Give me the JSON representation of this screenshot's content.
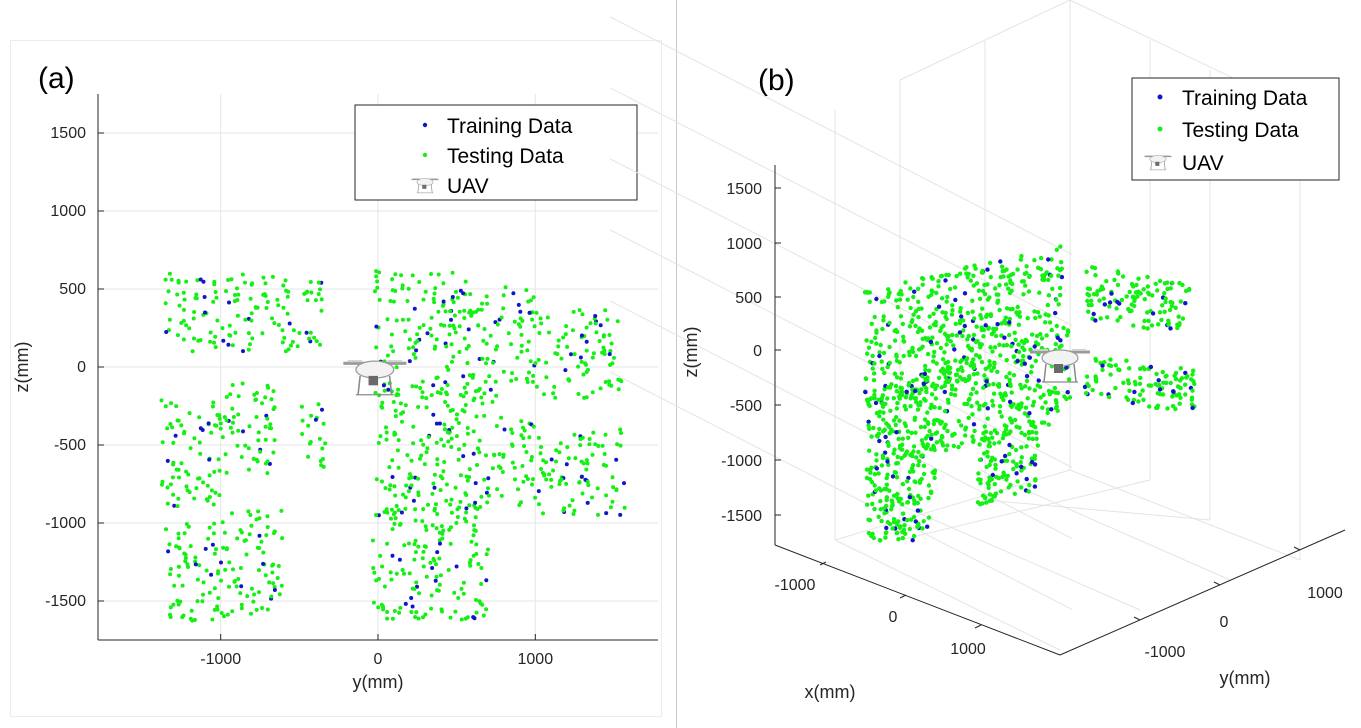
{
  "chart_data": [
    {
      "id": "a",
      "panel_label": "(a)",
      "type": "scatter",
      "xlabel": "y(mm)",
      "ylabel": "z(mm)",
      "xlim": [
        -1780,
        1780
      ],
      "ylim": [
        -1750,
        1750
      ],
      "xticks": [
        -1000,
        0,
        1000
      ],
      "yticks": [
        -1500,
        -1000,
        -500,
        0,
        500,
        1000,
        1500
      ],
      "grid": true,
      "legend": {
        "position": "top-right",
        "entries": [
          "Training Data",
          "Testing Data",
          "UAV"
        ]
      },
      "series": [
        {
          "name": "Training Data",
          "color": "#1414c8",
          "point_count_shown": "approx. 150"
        },
        {
          "name": "Testing Data",
          "color": "#14f014",
          "point_count_shown": "approx. 1400"
        }
      ],
      "clusters_yz": [
        {
          "y": [
            -1350,
            -1000
          ],
          "z": [
            100,
            600
          ]
        },
        {
          "y": [
            -1000,
            -550
          ],
          "z": [
            100,
            600
          ]
        },
        {
          "y": [
            -550,
            -350
          ],
          "z": [
            120,
            560
          ]
        },
        {
          "y": [
            -20,
            680
          ],
          "z": [
            -200,
            620
          ]
        },
        {
          "y": [
            680,
            1000
          ],
          "z": [
            -120,
            520
          ]
        },
        {
          "y": [
            1000,
            1550
          ],
          "z": [
            -200,
            370
          ]
        },
        {
          "y": [
            -1380,
            -1000
          ],
          "z": [
            -900,
            -200
          ]
        },
        {
          "y": [
            -1000,
            -650
          ],
          "z": [
            -700,
            -80
          ]
        },
        {
          "y": [
            -500,
            -330
          ],
          "z": [
            -650,
            -230
          ]
        },
        {
          "y": [
            -10,
            760
          ],
          "z": [
            -950,
            -120
          ]
        },
        {
          "y": [
            760,
            1000
          ],
          "z": [
            -900,
            -320
          ]
        },
        {
          "y": [
            1000,
            1580
          ],
          "z": [
            -950,
            -400
          ]
        },
        {
          "y": [
            -1350,
            -1050
          ],
          "z": [
            -1630,
            -1000
          ]
        },
        {
          "y": [
            -1050,
            -600
          ],
          "z": [
            -1600,
            -900
          ]
        },
        {
          "y": [
            -50,
            700
          ],
          "z": [
            -1620,
            -900
          ]
        }
      ],
      "uav_position": {
        "y": -20,
        "z": -30
      }
    },
    {
      "id": "b",
      "panel_label": "(b)",
      "type": "scatter",
      "xlabel": "x(mm)",
      "ylabel": "y(mm)",
      "zlabel": "z(mm)",
      "xticks": [
        -1000,
        0,
        1000
      ],
      "yticks": [
        -1000,
        0,
        1000
      ],
      "zticks": [
        -1500,
        -1000,
        -500,
        0,
        500,
        1000,
        1500
      ],
      "grid": true,
      "legend": {
        "position": "top-right",
        "entries": [
          "Training Data",
          "Testing Data",
          "UAV"
        ]
      },
      "series": [
        {
          "name": "Training Data",
          "color": "#1414c8"
        },
        {
          "name": "Testing Data",
          "color": "#14f014"
        }
      ]
    }
  ]
}
